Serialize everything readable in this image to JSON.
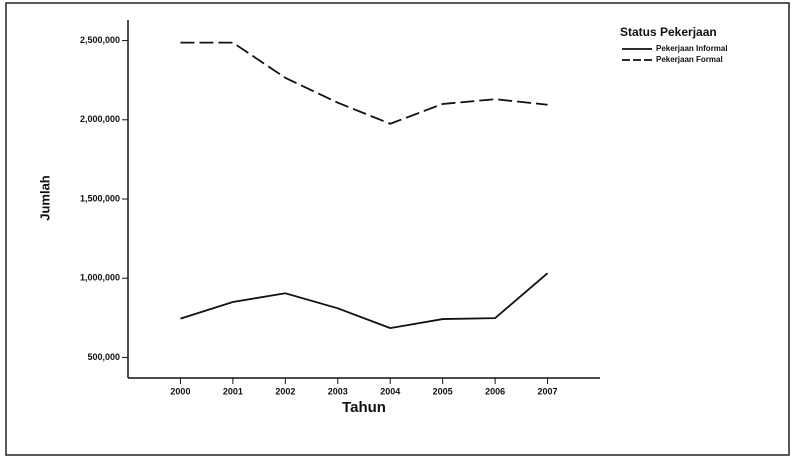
{
  "chart_data": {
    "type": "line",
    "x_label": "Tahun",
    "y_label": "Jumlah",
    "legend_title": "Status Pekerjaan",
    "legend": "top-right",
    "x": [
      2000,
      2001,
      2002,
      2003,
      2004,
      2005,
      2006,
      2007
    ],
    "xlim": [
      1999,
      2008
    ],
    "xticks": [
      2000,
      2001,
      2002,
      2003,
      2004,
      2005,
      2006,
      2007
    ],
    "ylim": [
      370000,
      2630000
    ],
    "yticks": [
      {
        "value": 500000,
        "label": "500,000"
      },
      {
        "value": 1000000,
        "label": "1,000,000"
      },
      {
        "value": 1500000,
        "label": "1,500,000"
      },
      {
        "value": 2000000,
        "label": "2,000,000"
      },
      {
        "value": 2500000,
        "label": "2,500,000"
      }
    ],
    "series": [
      {
        "name": "Pekerjaan Informal",
        "color": "#111111",
        "dash": "solid",
        "values": [
          745000,
          850000,
          905000,
          810000,
          685000,
          742000,
          748000,
          1032000
        ]
      },
      {
        "name": "Pekerjaan Formal",
        "color": "#111111",
        "dash": "dashed",
        "values": [
          2487000,
          2487000,
          2265000,
          2108000,
          1975000,
          2100000,
          2130000,
          2095000
        ]
      }
    ]
  }
}
